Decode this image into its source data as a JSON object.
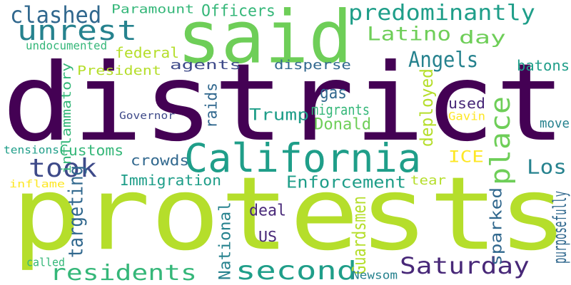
{
  "palette": {
    "dark_purple": "#440154",
    "indigo": "#482878",
    "slate_blue": "#3e4a89",
    "blue": "#31688e",
    "teal_blue": "#26828e",
    "teal": "#1f9e89",
    "green_teal": "#35b779",
    "green": "#6ece58",
    "lime": "#b5de2b",
    "yellow": "#fde725"
  },
  "words": [
    {
      "text": "district",
      "color": "dark_purple",
      "rotated": false
    },
    {
      "text": "protests",
      "color": "lime",
      "rotated": false
    },
    {
      "text": "said",
      "color": "green",
      "rotated": false
    },
    {
      "text": "California",
      "color": "teal",
      "rotated": false
    },
    {
      "text": "unrest",
      "color": "teal_blue",
      "rotated": false
    },
    {
      "text": "predominantly",
      "color": "teal",
      "rotated": false
    },
    {
      "text": "clashed",
      "color": "blue",
      "rotated": false
    },
    {
      "text": "took",
      "color": "slate_blue",
      "rotated": false
    },
    {
      "text": "second",
      "color": "teal",
      "rotated": false
    },
    {
      "text": "residents",
      "color": "green_teal",
      "rotated": false
    },
    {
      "text": "Saturday",
      "color": "indigo",
      "rotated": false
    },
    {
      "text": "place",
      "color": "green",
      "rotated": true
    },
    {
      "text": "day",
      "color": "green",
      "rotated": false
    },
    {
      "text": "Angels",
      "color": "teal_blue",
      "rotated": false
    },
    {
      "text": "Los",
      "color": "teal_blue",
      "rotated": false
    },
    {
      "text": "Latino",
      "color": "green",
      "rotated": false
    },
    {
      "text": "targeting",
      "color": "blue",
      "rotated": true
    },
    {
      "text": "Paramount",
      "color": "green_teal",
      "rotated": false
    },
    {
      "text": "Officers",
      "color": "green_teal",
      "rotated": false
    },
    {
      "text": "undocumented",
      "color": "green_teal",
      "rotated": false
    },
    {
      "text": "federal",
      "color": "lime",
      "rotated": false
    },
    {
      "text": "President",
      "color": "lime",
      "rotated": false
    },
    {
      "text": "agents",
      "color": "slate_blue",
      "rotated": false
    },
    {
      "text": "disperse",
      "color": "blue",
      "rotated": false
    },
    {
      "text": "batons",
      "color": "teal",
      "rotated": false
    },
    {
      "text": "inflammatory",
      "color": "green_teal",
      "rotated": true
    },
    {
      "text": "Governor",
      "color": "slate_blue",
      "rotated": false
    },
    {
      "text": "raids",
      "color": "blue",
      "rotated": true
    },
    {
      "text": "gas",
      "color": "blue",
      "rotated": false
    },
    {
      "text": "migrants",
      "color": "green_teal",
      "rotated": false
    },
    {
      "text": "Trump",
      "color": "teal",
      "rotated": false
    },
    {
      "text": "Donald",
      "color": "green",
      "rotated": false
    },
    {
      "text": "deployed",
      "color": "lime",
      "rotated": true
    },
    {
      "text": "used",
      "color": "indigo",
      "rotated": false
    },
    {
      "text": "Gavin",
      "color": "yellow",
      "rotated": false
    },
    {
      "text": "move",
      "color": "teal_blue",
      "rotated": false
    },
    {
      "text": "tensions",
      "color": "teal",
      "rotated": false
    },
    {
      "text": "Customs",
      "color": "green_teal",
      "rotated": false
    },
    {
      "text": "crowds",
      "color": "blue",
      "rotated": false
    },
    {
      "text": "ICE",
      "color": "yellow",
      "rotated": false
    },
    {
      "text": "Immigration",
      "color": "teal",
      "rotated": false
    },
    {
      "text": "Enforcement",
      "color": "teal",
      "rotated": false
    },
    {
      "text": "tear",
      "color": "lime",
      "rotated": false
    },
    {
      "text": "inflame",
      "color": "yellow",
      "rotated": false
    },
    {
      "text": "deal",
      "color": "indigo",
      "rotated": false
    },
    {
      "text": "National",
      "color": "teal_blue",
      "rotated": true
    },
    {
      "text": "Guardsmen",
      "color": "lime",
      "rotated": true
    },
    {
      "text": "sparked",
      "color": "blue",
      "rotated": true
    },
    {
      "text": "purposefully",
      "color": "blue",
      "rotated": true
    },
    {
      "text": "US",
      "color": "indigo",
      "rotated": false
    },
    {
      "text": "called",
      "color": "green_teal",
      "rotated": false
    },
    {
      "text": "Newsom",
      "color": "teal_blue",
      "rotated": false
    }
  ]
}
